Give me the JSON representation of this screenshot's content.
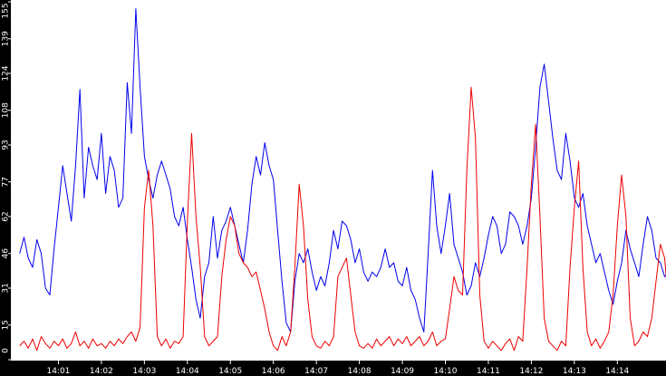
{
  "chart_data": {
    "type": "line",
    "title": "",
    "xlabel": "",
    "ylabel": "",
    "ylim": [
      0,
      155
    ],
    "grid": false,
    "legend": "none",
    "background": "#ffffff",
    "axis_band_color": "#000000",
    "axis_text_color": "#ffffff",
    "y_ticks": [
      0,
      15,
      31,
      46,
      62,
      77,
      93,
      108,
      124,
      139,
      155
    ],
    "x_ticks": [
      {
        "label": "14:01",
        "t": 1
      },
      {
        "label": "14:02",
        "t": 2
      },
      {
        "label": "14:03",
        "t": 3
      },
      {
        "label": "14:04",
        "t": 4
      },
      {
        "label": "14:05",
        "t": 5
      },
      {
        "label": "14:06",
        "t": 6
      },
      {
        "label": "14:07",
        "t": 7
      },
      {
        "label": "14:08",
        "t": 8
      },
      {
        "label": "14:09",
        "t": 9
      },
      {
        "label": "14:10",
        "t": 10
      },
      {
        "label": "14:11",
        "t": 11
      },
      {
        "label": "14:12",
        "t": 12
      },
      {
        "label": "14:13",
        "t": 13
      },
      {
        "label": "14:14",
        "t": 14
      }
    ],
    "x_range": [
      0.1,
      15.3
    ],
    "series": [
      {
        "color": "#0000ee",
        "points": [
          [
            0.1,
            46
          ],
          [
            0.2,
            53
          ],
          [
            0.3,
            44
          ],
          [
            0.4,
            40
          ],
          [
            0.5,
            52
          ],
          [
            0.6,
            46
          ],
          [
            0.7,
            31
          ],
          [
            0.8,
            28
          ],
          [
            0.9,
            48
          ],
          [
            1.0,
            66
          ],
          [
            1.1,
            84
          ],
          [
            1.2,
            72
          ],
          [
            1.3,
            60
          ],
          [
            1.4,
            84
          ],
          [
            1.5,
            117
          ],
          [
            1.6,
            70
          ],
          [
            1.7,
            92
          ],
          [
            1.8,
            84
          ],
          [
            1.9,
            78
          ],
          [
            2.0,
            98
          ],
          [
            2.1,
            72
          ],
          [
            2.2,
            88
          ],
          [
            2.3,
            82
          ],
          [
            2.4,
            66
          ],
          [
            2.5,
            70
          ],
          [
            2.6,
            120
          ],
          [
            2.7,
            98
          ],
          [
            2.8,
            152
          ],
          [
            2.9,
            118
          ],
          [
            3.0,
            88
          ],
          [
            3.1,
            78
          ],
          [
            3.2,
            70
          ],
          [
            3.3,
            80
          ],
          [
            3.4,
            86
          ],
          [
            3.5,
            80
          ],
          [
            3.6,
            74
          ],
          [
            3.7,
            62
          ],
          [
            3.8,
            58
          ],
          [
            3.9,
            66
          ],
          [
            4.0,
            52
          ],
          [
            4.1,
            40
          ],
          [
            4.2,
            26
          ],
          [
            4.3,
            18
          ],
          [
            4.4,
            36
          ],
          [
            4.5,
            42
          ],
          [
            4.6,
            62
          ],
          [
            4.7,
            44
          ],
          [
            4.8,
            56
          ],
          [
            4.9,
            60
          ],
          [
            5.0,
            66
          ],
          [
            5.1,
            58
          ],
          [
            5.2,
            50
          ],
          [
            5.3,
            42
          ],
          [
            5.4,
            56
          ],
          [
            5.5,
            76
          ],
          [
            5.6,
            88
          ],
          [
            5.7,
            80
          ],
          [
            5.8,
            94
          ],
          [
            5.9,
            84
          ],
          [
            6.0,
            78
          ],
          [
            6.1,
            56
          ],
          [
            6.2,
            34
          ],
          [
            6.3,
            16
          ],
          [
            6.4,
            12
          ],
          [
            6.5,
            34
          ],
          [
            6.6,
            46
          ],
          [
            6.7,
            42
          ],
          [
            6.8,
            48
          ],
          [
            6.9,
            38
          ],
          [
            7.0,
            30
          ],
          [
            7.1,
            36
          ],
          [
            7.2,
            32
          ],
          [
            7.3,
            42
          ],
          [
            7.4,
            56
          ],
          [
            7.5,
            48
          ],
          [
            7.6,
            60
          ],
          [
            7.7,
            58
          ],
          [
            7.8,
            52
          ],
          [
            7.9,
            42
          ],
          [
            8.0,
            48
          ],
          [
            8.1,
            38
          ],
          [
            8.2,
            34
          ],
          [
            8.3,
            38
          ],
          [
            8.4,
            36
          ],
          [
            8.5,
            40
          ],
          [
            8.6,
            48
          ],
          [
            8.7,
            40
          ],
          [
            8.8,
            42
          ],
          [
            8.9,
            34
          ],
          [
            9.0,
            32
          ],
          [
            9.1,
            40
          ],
          [
            9.2,
            30
          ],
          [
            9.3,
            26
          ],
          [
            9.4,
            18
          ],
          [
            9.5,
            12
          ],
          [
            9.6,
            46
          ],
          [
            9.7,
            82
          ],
          [
            9.8,
            58
          ],
          [
            9.9,
            46
          ],
          [
            10.0,
            58
          ],
          [
            10.1,
            72
          ],
          [
            10.2,
            50
          ],
          [
            10.3,
            44
          ],
          [
            10.4,
            38
          ],
          [
            10.5,
            28
          ],
          [
            10.6,
            32
          ],
          [
            10.7,
            42
          ],
          [
            10.8,
            36
          ],
          [
            10.9,
            44
          ],
          [
            11.0,
            54
          ],
          [
            11.1,
            62
          ],
          [
            11.2,
            58
          ],
          [
            11.3,
            46
          ],
          [
            11.4,
            50
          ],
          [
            11.5,
            64
          ],
          [
            11.6,
            62
          ],
          [
            11.7,
            58
          ],
          [
            11.8,
            50
          ],
          [
            11.9,
            58
          ],
          [
            12.0,
            70
          ],
          [
            12.1,
            92
          ],
          [
            12.2,
            118
          ],
          [
            12.3,
            128
          ],
          [
            12.4,
            112
          ],
          [
            12.5,
            96
          ],
          [
            12.6,
            82
          ],
          [
            12.7,
            78
          ],
          [
            12.8,
            98
          ],
          [
            12.9,
            86
          ],
          [
            13.0,
            70
          ],
          [
            13.1,
            66
          ],
          [
            13.2,
            72
          ],
          [
            13.3,
            58
          ],
          [
            13.4,
            50
          ],
          [
            13.5,
            42
          ],
          [
            13.6,
            46
          ],
          [
            13.7,
            38
          ],
          [
            13.8,
            30
          ],
          [
            13.9,
            24
          ],
          [
            14.0,
            34
          ],
          [
            14.1,
            42
          ],
          [
            14.2,
            56
          ],
          [
            14.3,
            48
          ],
          [
            14.4,
            42
          ],
          [
            14.5,
            36
          ],
          [
            14.6,
            50
          ],
          [
            14.7,
            62
          ],
          [
            14.8,
            56
          ],
          [
            14.9,
            44
          ],
          [
            15.0,
            42
          ],
          [
            15.1,
            36
          ],
          [
            15.2,
            38
          ],
          [
            15.3,
            42
          ]
        ]
      },
      {
        "color": "#ee0000",
        "points": [
          [
            0.1,
            6
          ],
          [
            0.2,
            8
          ],
          [
            0.3,
            5
          ],
          [
            0.4,
            9
          ],
          [
            0.5,
            4
          ],
          [
            0.6,
            10
          ],
          [
            0.7,
            7
          ],
          [
            0.8,
            5
          ],
          [
            0.9,
            8
          ],
          [
            1.0,
            6
          ],
          [
            1.1,
            9
          ],
          [
            1.2,
            5
          ],
          [
            1.3,
            7
          ],
          [
            1.4,
            12
          ],
          [
            1.5,
            6
          ],
          [
            1.6,
            8
          ],
          [
            1.7,
            5
          ],
          [
            1.8,
            9
          ],
          [
            1.9,
            6
          ],
          [
            2.0,
            7
          ],
          [
            2.1,
            5
          ],
          [
            2.2,
            8
          ],
          [
            2.3,
            6
          ],
          [
            2.4,
            9
          ],
          [
            2.5,
            7
          ],
          [
            2.6,
            10
          ],
          [
            2.7,
            12
          ],
          [
            2.8,
            8
          ],
          [
            2.9,
            14
          ],
          [
            3.0,
            66
          ],
          [
            3.1,
            82
          ],
          [
            3.2,
            58
          ],
          [
            3.3,
            10
          ],
          [
            3.4,
            6
          ],
          [
            3.5,
            9
          ],
          [
            3.6,
            5
          ],
          [
            3.7,
            8
          ],
          [
            3.8,
            7
          ],
          [
            3.9,
            10
          ],
          [
            4.0,
            60
          ],
          [
            4.1,
            98
          ],
          [
            4.2,
            62
          ],
          [
            4.3,
            40
          ],
          [
            4.4,
            10
          ],
          [
            4.5,
            6
          ],
          [
            4.6,
            8
          ],
          [
            4.7,
            10
          ],
          [
            4.8,
            36
          ],
          [
            4.9,
            52
          ],
          [
            5.0,
            62
          ],
          [
            5.1,
            58
          ],
          [
            5.2,
            46
          ],
          [
            5.3,
            42
          ],
          [
            5.4,
            40
          ],
          [
            5.5,
            36
          ],
          [
            5.6,
            38
          ],
          [
            5.7,
            30
          ],
          [
            5.8,
            22
          ],
          [
            5.9,
            12
          ],
          [
            6.0,
            6
          ],
          [
            6.1,
            4
          ],
          [
            6.2,
            10
          ],
          [
            6.3,
            6
          ],
          [
            6.4,
            12
          ],
          [
            6.5,
            40
          ],
          [
            6.6,
            76
          ],
          [
            6.7,
            58
          ],
          [
            6.8,
            26
          ],
          [
            6.9,
            10
          ],
          [
            7.0,
            6
          ],
          [
            7.1,
            5
          ],
          [
            7.2,
            8
          ],
          [
            7.3,
            6
          ],
          [
            7.4,
            10
          ],
          [
            7.5,
            36
          ],
          [
            7.6,
            40
          ],
          [
            7.7,
            44
          ],
          [
            7.8,
            28
          ],
          [
            7.9,
            12
          ],
          [
            8.0,
            6
          ],
          [
            8.1,
            5
          ],
          [
            8.2,
            7
          ],
          [
            8.3,
            5
          ],
          [
            8.4,
            9
          ],
          [
            8.5,
            6
          ],
          [
            8.6,
            8
          ],
          [
            8.7,
            10
          ],
          [
            8.8,
            6
          ],
          [
            8.9,
            9
          ],
          [
            9.0,
            7
          ],
          [
            9.1,
            10
          ],
          [
            9.2,
            6
          ],
          [
            9.3,
            8
          ],
          [
            9.4,
            10
          ],
          [
            9.5,
            6
          ],
          [
            9.6,
            8
          ],
          [
            9.7,
            12
          ],
          [
            9.8,
            6
          ],
          [
            9.9,
            8
          ],
          [
            10.0,
            9
          ],
          [
            10.1,
            22
          ],
          [
            10.2,
            36
          ],
          [
            10.3,
            30
          ],
          [
            10.4,
            28
          ],
          [
            10.5,
            82
          ],
          [
            10.6,
            118
          ],
          [
            10.7,
            96
          ],
          [
            10.8,
            28
          ],
          [
            10.9,
            8
          ],
          [
            11.0,
            5
          ],
          [
            11.1,
            8
          ],
          [
            11.2,
            6
          ],
          [
            11.3,
            4
          ],
          [
            11.4,
            7
          ],
          [
            11.5,
            9
          ],
          [
            11.6,
            4
          ],
          [
            11.7,
            10
          ],
          [
            11.8,
            8
          ],
          [
            11.9,
            40
          ],
          [
            12.0,
            76
          ],
          [
            12.1,
            102
          ],
          [
            12.2,
            62
          ],
          [
            12.3,
            18
          ],
          [
            12.4,
            8
          ],
          [
            12.5,
            6
          ],
          [
            12.6,
            4
          ],
          [
            12.7,
            8
          ],
          [
            12.8,
            6
          ],
          [
            12.9,
            40
          ],
          [
            13.0,
            66
          ],
          [
            13.1,
            86
          ],
          [
            13.2,
            40
          ],
          [
            13.3,
            12
          ],
          [
            13.4,
            6
          ],
          [
            13.5,
            9
          ],
          [
            13.6,
            5
          ],
          [
            13.7,
            8
          ],
          [
            13.8,
            12
          ],
          [
            13.9,
            28
          ],
          [
            14.0,
            58
          ],
          [
            14.1,
            80
          ],
          [
            14.2,
            62
          ],
          [
            14.3,
            18
          ],
          [
            14.4,
            6
          ],
          [
            14.5,
            8
          ],
          [
            14.6,
            12
          ],
          [
            14.7,
            10
          ],
          [
            14.8,
            18
          ],
          [
            14.9,
            34
          ],
          [
            15.0,
            50
          ],
          [
            15.1,
            44
          ],
          [
            15.2,
            22
          ],
          [
            15.3,
            10
          ]
        ]
      }
    ]
  }
}
